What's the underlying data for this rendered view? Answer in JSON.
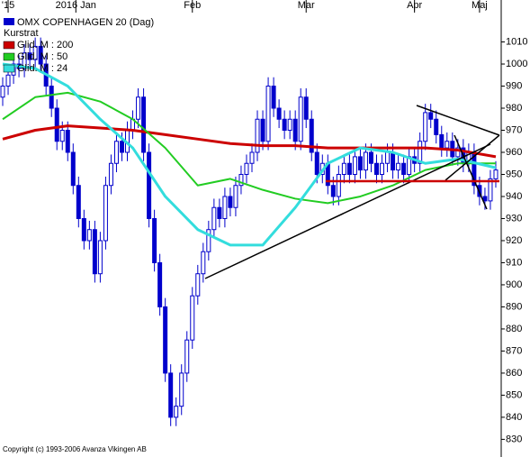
{
  "chart_data": {
    "type": "candlestick",
    "label": "Kurstrat",
    "footer": "Copyright (c) 1993-2006 Avanza Vikingen AB",
    "ohlc": {
      "name": "OMX COPENHAGEN 20 (Dag)",
      "color": "#0000cc",
      "open": [
        985,
        990,
        995,
        1000,
        998,
        1005,
        1002,
        1008,
        1000,
        990,
        980,
        965,
        970,
        960,
        945,
        930,
        920,
        925,
        905,
        920,
        945,
        955,
        965,
        960,
        970,
        975,
        985,
        960,
        930,
        910,
        890,
        860,
        840,
        845,
        860,
        875,
        895,
        905,
        915,
        925,
        935,
        930,
        940,
        935,
        945,
        950,
        955,
        960,
        975,
        965,
        990,
        980,
        975,
        970,
        975,
        965,
        985,
        975,
        960,
        950,
        955,
        945,
        940,
        950,
        955,
        950,
        958,
        952,
        960,
        955,
        950,
        955,
        960,
        952,
        955,
        950,
        958,
        955,
        965,
        978,
        975,
        968,
        962,
        965,
        958,
        962,
        955,
        960,
        945,
        940,
        938,
        948
      ],
      "high": [
        994,
        999,
        1004,
        1004,
        1009,
        1009,
        1012,
        1012,
        1004,
        994,
        984,
        974,
        974,
        964,
        949,
        934,
        929,
        929,
        924,
        949,
        959,
        969,
        969,
        974,
        979,
        989,
        989,
        964,
        934,
        914,
        894,
        864,
        849,
        864,
        879,
        899,
        909,
        919,
        929,
        939,
        939,
        944,
        944,
        949,
        954,
        959,
        964,
        979,
        979,
        994,
        994,
        984,
        979,
        979,
        979,
        989,
        989,
        979,
        964,
        959,
        959,
        949,
        954,
        959,
        959,
        962,
        962,
        964,
        964,
        959,
        959,
        964,
        964,
        959,
        959,
        962,
        962,
        969,
        982,
        982,
        979,
        972,
        969,
        969,
        966,
        966,
        964,
        964,
        949,
        944,
        952,
        956
      ],
      "low": [
        981,
        986,
        991,
        994,
        994,
        998,
        998,
        996,
        986,
        976,
        961,
        961,
        956,
        941,
        926,
        916,
        916,
        901,
        901,
        916,
        941,
        951,
        956,
        956,
        966,
        971,
        956,
        926,
        906,
        886,
        856,
        836,
        836,
        841,
        856,
        871,
        891,
        901,
        911,
        921,
        926,
        926,
        931,
        931,
        941,
        946,
        951,
        956,
        961,
        961,
        976,
        971,
        966,
        966,
        961,
        961,
        971,
        956,
        946,
        946,
        941,
        936,
        936,
        946,
        946,
        946,
        948,
        948,
        951,
        946,
        946,
        951,
        948,
        948,
        946,
        946,
        951,
        951,
        961,
        971,
        964,
        958,
        958,
        954,
        954,
        951,
        951,
        941,
        936,
        934,
        934,
        944
      ],
      "close": [
        990,
        995,
        1000,
        998,
        1005,
        1002,
        1008,
        1000,
        990,
        980,
        965,
        970,
        960,
        945,
        930,
        920,
        925,
        905,
        920,
        945,
        955,
        965,
        960,
        970,
        975,
        985,
        960,
        930,
        910,
        890,
        860,
        840,
        845,
        860,
        875,
        895,
        905,
        915,
        925,
        935,
        930,
        940,
        935,
        945,
        950,
        955,
        960,
        975,
        965,
        990,
        980,
        975,
        970,
        975,
        965,
        985,
        975,
        960,
        950,
        955,
        945,
        940,
        950,
        955,
        950,
        958,
        952,
        960,
        955,
        950,
        955,
        960,
        952,
        955,
        950,
        958,
        955,
        965,
        978,
        975,
        968,
        962,
        965,
        958,
        962,
        955,
        960,
        945,
        940,
        938,
        948,
        952
      ]
    },
    "series": [
      {
        "name": "Glid. M : 200",
        "color": "#cc0000",
        "width": 3,
        "x": [
          0,
          6,
          12,
          18,
          24,
          30,
          36,
          42,
          48,
          54,
          60,
          66,
          72,
          78,
          84,
          91
        ],
        "values": [
          966,
          970,
          972,
          971,
          970,
          968,
          966,
          964,
          963,
          963,
          962,
          962,
          962,
          962,
          961,
          958
        ]
      },
      {
        "name": "Glid. M : 50",
        "color": "#22cc22",
        "width": 2,
        "x": [
          0,
          6,
          12,
          18,
          24,
          30,
          36,
          42,
          48,
          54,
          60,
          66,
          72,
          78,
          84,
          91
        ],
        "values": [
          975,
          985,
          987,
          983,
          975,
          962,
          945,
          948,
          943,
          939,
          937,
          940,
          945,
          952,
          955,
          955
        ]
      },
      {
        "name": "Glid. M : 24",
        "color": "#33dddd",
        "width": 3,
        "x": [
          0,
          6,
          12,
          18,
          24,
          30,
          36,
          42,
          48,
          54,
          60,
          66,
          72,
          78,
          84,
          91
        ],
        "values": [
          1000,
          998,
          990,
          975,
          962,
          940,
          925,
          918,
          918,
          935,
          955,
          962,
          960,
          955,
          957,
          953
        ]
      }
    ],
    "xlim": [
      -0.5,
      92
    ],
    "xticks": [
      {
        "value": 1,
        "label": "'15"
      },
      {
        "value": 13.5,
        "label": "2016 Jan"
      },
      {
        "value": 35,
        "label": "Feb"
      },
      {
        "value": 56,
        "label": "Mar"
      },
      {
        "value": 76,
        "label": "Apr"
      },
      {
        "value": 88,
        "label": "Maj"
      }
    ],
    "ylim": [
      822,
      1029
    ],
    "yticks": [
      830,
      840,
      850,
      860,
      870,
      880,
      890,
      900,
      910,
      920,
      930,
      940,
      950,
      960,
      970,
      980,
      990,
      1000,
      1010
    ]
  }
}
